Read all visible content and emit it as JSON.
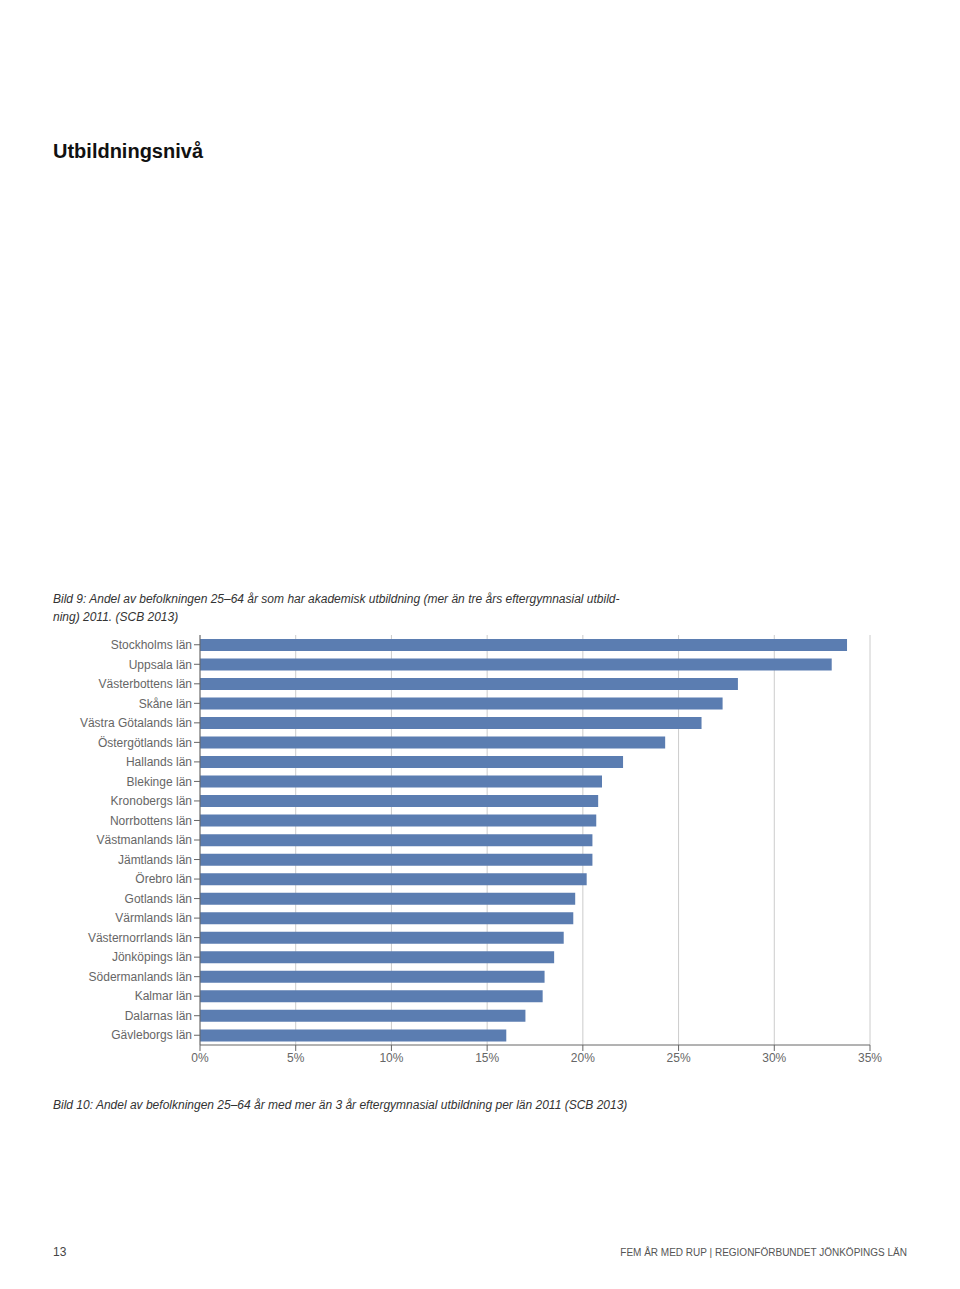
{
  "chart_data": {
    "type": "bar",
    "orientation": "horizontal",
    "title": "Utbildningsnivå",
    "annotations": [
      "Bild 9: Andel av befolkningen 25–64 år som har akademisk utbildning (mer än tre års eftergymnasial utbild-\nning) 2011. (SCB 2013)",
      "Bild 10: Andel av befolkningen 25–64 år med mer än 3 år eftergymnasial utbildning per län 2011 (SCB 2013)",
      "13",
      "FEM ÅR MED RUP | REGIONFÖRBUNDET JÖNKÖPINGS LÄN"
    ],
    "categories": [
      "Stockholms län",
      "Uppsala län",
      "Västerbottens län",
      "Skåne län",
      "Västra Götalands län",
      "Östergötlands län",
      "Hallands län",
      "Blekinge län",
      "Kronobergs län",
      "Norrbottens län",
      "Västmanlands län",
      "Jämtlands län",
      "Örebro län",
      "Gotlands län",
      "Värmlands län",
      "Västernorrlands län",
      "Jönköpings län",
      "Södermanlands län",
      "Kalmar län",
      "Dalarnas län",
      "Gävleborgs län"
    ],
    "values": [
      0.338,
      0.33,
      0.281,
      0.273,
      0.262,
      0.243,
      0.221,
      0.21,
      0.208,
      0.207,
      0.205,
      0.205,
      0.202,
      0.196,
      0.195,
      0.19,
      0.185,
      0.18,
      0.179,
      0.17,
      0.16
    ],
    "color": "#5B7DB1",
    "xlim": [
      0,
      0.35
    ],
    "xticks": [
      {
        "value": 0.0,
        "label": "0%"
      },
      {
        "value": 0.05,
        "label": "5%"
      },
      {
        "value": 0.1,
        "label": "10%"
      },
      {
        "value": 0.15,
        "label": "15%"
      },
      {
        "value": 0.2,
        "label": "20%"
      },
      {
        "value": 0.25,
        "label": "25%"
      },
      {
        "value": 0.3,
        "label": "30%"
      },
      {
        "value": 0.35,
        "label": "35%"
      }
    ],
    "grid": true
  }
}
